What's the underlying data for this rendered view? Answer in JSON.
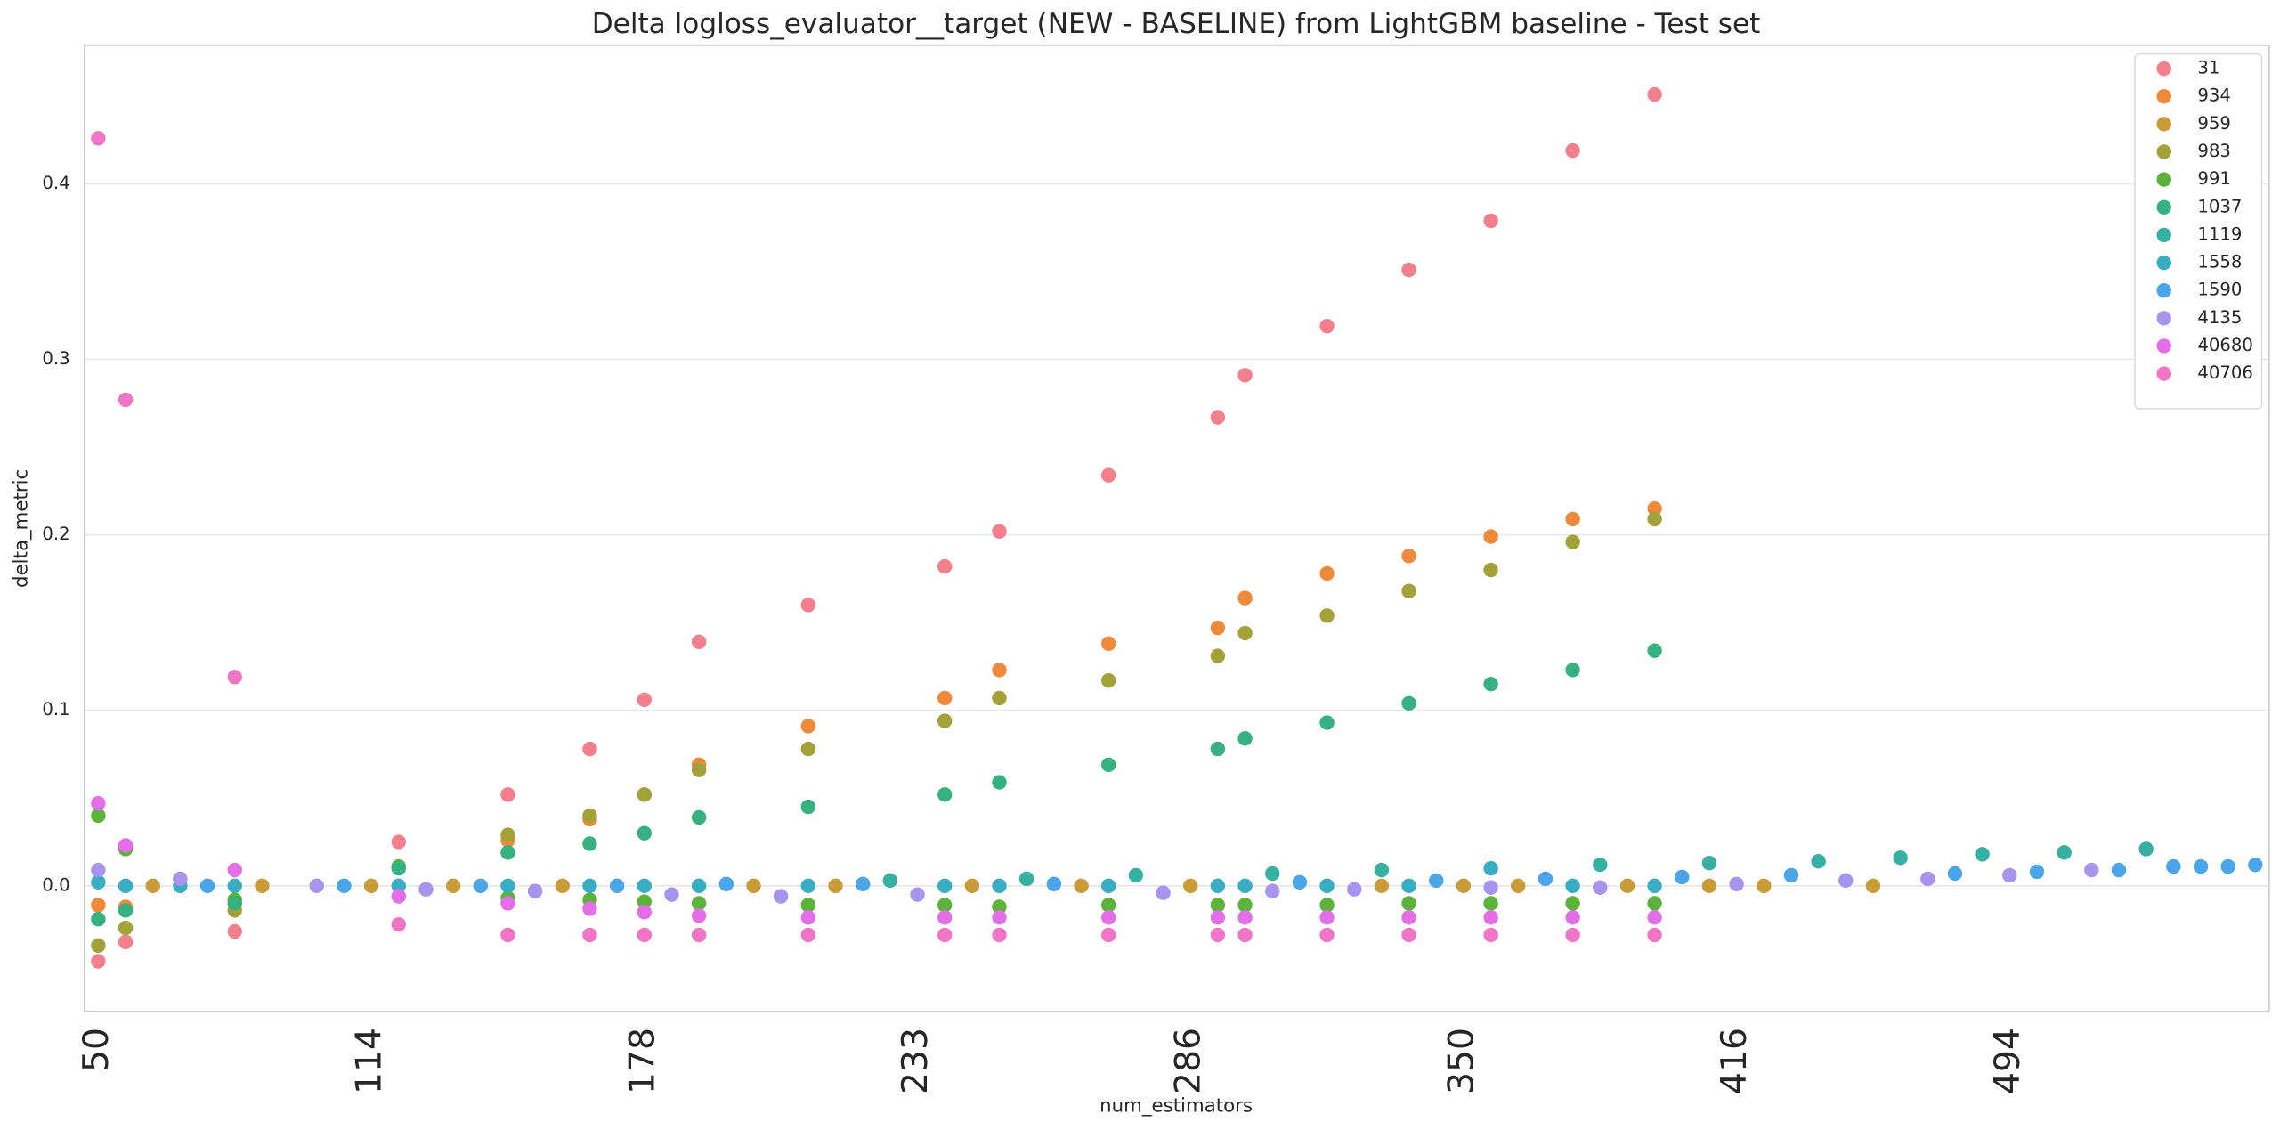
{
  "chart_data": {
    "type": "scatter",
    "title": "Delta logloss_evaluator__target (NEW - BASELINE) from LightGBM baseline - Test set",
    "xlabel": "num_estimators",
    "ylabel": "delta_metric",
    "categories": [
      "50",
      null,
      null,
      null,
      null,
      null,
      null,
      null,
      null,
      null,
      "114",
      null,
      null,
      null,
      null,
      null,
      null,
      null,
      null,
      null,
      "178",
      null,
      null,
      null,
      null,
      null,
      null,
      null,
      null,
      null,
      "233",
      null,
      null,
      null,
      null,
      null,
      null,
      null,
      null,
      null,
      "286",
      null,
      null,
      null,
      null,
      null,
      null,
      null,
      null,
      null,
      "350",
      null,
      null,
      null,
      null,
      null,
      null,
      null,
      null,
      null,
      "416",
      null,
      null,
      null,
      null,
      null,
      null,
      null,
      null,
      null,
      "494",
      null,
      null,
      null,
      null,
      null,
      null,
      null,
      null,
      null
    ],
    "ylim": [
      -0.0716,
      0.479
    ],
    "yticks": [
      {
        "value": 0,
        "label": "0.0"
      },
      0.1,
      0.2,
      0.3,
      0.4
    ],
    "grid": true,
    "legend": "upper right",
    "series": [
      {
        "name": "31",
        "color": "#f47f8c",
        "values": [
          -0.043,
          -0.032,
          null,
          null,
          null,
          -0.026,
          null,
          null,
          null,
          null,
          null,
          0.025,
          null,
          null,
          null,
          0.052,
          null,
          null,
          0.078,
          null,
          0.106,
          null,
          0.139,
          null,
          null,
          null,
          0.16,
          null,
          null,
          null,
          null,
          0.182,
          null,
          0.202,
          null,
          null,
          null,
          0.234,
          null,
          null,
          null,
          0.267,
          0.291,
          null,
          null,
          0.319,
          null,
          null,
          0.351,
          null,
          null,
          0.379,
          null,
          null,
          0.419,
          null,
          null,
          0.451,
          null,
          null,
          null,
          null,
          null,
          null,
          null,
          null,
          null,
          null,
          null,
          null,
          null,
          null,
          null,
          null,
          null,
          null,
          null,
          null,
          null,
          null
        ]
      },
      {
        "name": "934",
        "color": "#ef8a3a",
        "values": [
          -0.011,
          -0.012,
          null,
          null,
          null,
          null,
          null,
          null,
          null,
          null,
          null,
          null,
          null,
          null,
          null,
          0.026,
          null,
          null,
          0.038,
          null,
          0.052,
          null,
          0.069,
          null,
          null,
          null,
          0.091,
          null,
          null,
          null,
          null,
          0.107,
          null,
          0.123,
          null,
          null,
          null,
          0.138,
          null,
          null,
          null,
          0.147,
          0.164,
          null,
          null,
          0.178,
          null,
          null,
          0.188,
          null,
          null,
          0.199,
          null,
          null,
          0.209,
          null,
          null,
          0.215,
          null,
          null,
          null,
          null,
          null,
          null,
          null,
          null,
          null,
          null,
          null,
          null,
          null,
          null,
          null,
          null,
          null,
          null,
          null,
          null,
          null,
          null
        ]
      },
      {
        "name": "959",
        "color": "#c99c38",
        "values": [
          null,
          null,
          0,
          null,
          null,
          null,
          0,
          null,
          null,
          null,
          0,
          null,
          null,
          0,
          null,
          null,
          null,
          0,
          null,
          null,
          null,
          null,
          null,
          null,
          0,
          null,
          null,
          0,
          null,
          null,
          null,
          null,
          0,
          null,
          null,
          null,
          0,
          null,
          null,
          null,
          0,
          null,
          null,
          null,
          null,
          null,
          null,
          0,
          null,
          null,
          0,
          null,
          0,
          null,
          null,
          null,
          0,
          null,
          null,
          0,
          null,
          0,
          null,
          null,
          null,
          0,
          null,
          null,
          null,
          null,
          null,
          null,
          null,
          null,
          null,
          null,
          null,
          null,
          null,
          null
        ]
      },
      {
        "name": "983",
        "color": "#a3a239",
        "values": [
          -0.034,
          -0.024,
          null,
          null,
          null,
          -0.014,
          null,
          null,
          null,
          null,
          null,
          null,
          null,
          null,
          null,
          0.029,
          null,
          null,
          0.04,
          null,
          0.052,
          null,
          0.066,
          null,
          null,
          null,
          0.078,
          null,
          null,
          null,
          null,
          0.094,
          null,
          0.107,
          null,
          null,
          null,
          0.117,
          null,
          null,
          null,
          0.131,
          0.144,
          null,
          null,
          0.154,
          null,
          null,
          0.168,
          null,
          null,
          0.18,
          null,
          null,
          0.196,
          null,
          null,
          0.209,
          null,
          null,
          null,
          null,
          null,
          null,
          null,
          null,
          null,
          null,
          null,
          null,
          null,
          null,
          null,
          null,
          null,
          null,
          null,
          null,
          null,
          null
        ]
      },
      {
        "name": "991",
        "color": "#5bb33a",
        "values": [
          0.04,
          0.021,
          null,
          null,
          null,
          -0.008,
          null,
          null,
          null,
          null,
          null,
          0.011,
          null,
          null,
          null,
          -0.007,
          null,
          null,
          -0.008,
          null,
          -0.009,
          null,
          -0.01,
          null,
          null,
          null,
          -0.011,
          null,
          null,
          null,
          null,
          -0.011,
          null,
          -0.012,
          null,
          null,
          null,
          -0.011,
          null,
          null,
          null,
          -0.011,
          -0.011,
          null,
          null,
          -0.011,
          null,
          null,
          -0.01,
          null,
          null,
          -0.01,
          null,
          null,
          -0.01,
          null,
          null,
          -0.01,
          null,
          null,
          null,
          null,
          null,
          null,
          null,
          null,
          null,
          null,
          null,
          null,
          null,
          null,
          null,
          null,
          null,
          null,
          null,
          null,
          null,
          null
        ]
      },
      {
        "name": "1037",
        "color": "#35b27f",
        "values": [
          -0.019,
          -0.014,
          null,
          null,
          null,
          -0.01,
          null,
          null,
          null,
          null,
          null,
          0.01,
          null,
          null,
          null,
          0.019,
          null,
          null,
          0.024,
          null,
          0.03,
          null,
          0.039,
          null,
          null,
          null,
          0.045,
          null,
          null,
          null,
          null,
          0.052,
          null,
          0.059,
          null,
          null,
          null,
          0.069,
          null,
          null,
          null,
          0.078,
          0.084,
          null,
          null,
          0.093,
          null,
          null,
          0.104,
          null,
          null,
          0.115,
          null,
          null,
          0.123,
          null,
          null,
          0.134,
          null,
          null,
          null,
          null,
          null,
          null,
          null,
          null,
          null,
          null,
          null,
          null,
          null,
          null,
          null,
          null,
          null,
          null,
          null,
          null,
          null,
          null
        ]
      },
      {
        "name": "1119",
        "color": "#36b0a3",
        "values": [
          null,
          null,
          null,
          null,
          null,
          null,
          null,
          null,
          null,
          null,
          null,
          null,
          null,
          null,
          null,
          null,
          null,
          null,
          null,
          null,
          null,
          null,
          null,
          null,
          null,
          null,
          null,
          null,
          null,
          0.003,
          null,
          null,
          null,
          null,
          0.004,
          null,
          null,
          null,
          0.006,
          null,
          null,
          null,
          null,
          0.007,
          null,
          null,
          null,
          0.009,
          null,
          null,
          null,
          null,
          null,
          null,
          null,
          0.012,
          null,
          null,
          null,
          0.013,
          null,
          null,
          null,
          0.014,
          null,
          null,
          0.016,
          null,
          null,
          0.018,
          null,
          null,
          0.019,
          null,
          null,
          0.021,
          null,
          null,
          null,
          null
        ]
      },
      {
        "name": "1558",
        "color": "#38adc4",
        "values": [
          0.002,
          0,
          null,
          0,
          null,
          0,
          null,
          null,
          null,
          null,
          null,
          0,
          null,
          null,
          null,
          0,
          null,
          null,
          0,
          null,
          0,
          null,
          0,
          null,
          null,
          null,
          0,
          null,
          null,
          null,
          null,
          0,
          null,
          0,
          null,
          null,
          null,
          0,
          null,
          null,
          null,
          0,
          0,
          null,
          null,
          0,
          null,
          null,
          0,
          null,
          null,
          0.01,
          null,
          null,
          0,
          null,
          null,
          0,
          null,
          null,
          null,
          null,
          null,
          null,
          null,
          null,
          null,
          null,
          null,
          null,
          null,
          null,
          null,
          null,
          null,
          null,
          null,
          null,
          null,
          null
        ]
      },
      {
        "name": "1590",
        "color": "#4aa6e8",
        "values": [
          null,
          null,
          null,
          null,
          0,
          null,
          null,
          null,
          null,
          0,
          null,
          null,
          null,
          null,
          0,
          null,
          null,
          null,
          null,
          0,
          null,
          null,
          null,
          0.001,
          null,
          null,
          null,
          null,
          0.001,
          null,
          null,
          null,
          null,
          null,
          null,
          0.001,
          null,
          null,
          null,
          null,
          null,
          null,
          null,
          null,
          0.002,
          null,
          null,
          null,
          null,
          0.003,
          null,
          null,
          null,
          0.004,
          null,
          null,
          null,
          null,
          0.005,
          null,
          null,
          null,
          0.006,
          null,
          null,
          null,
          null,
          null,
          0.007,
          null,
          null,
          0.008,
          null,
          null,
          0.009,
          null,
          0.011,
          0.011,
          0.011,
          0.012
        ]
      },
      {
        "name": "4135",
        "color": "#a893ee",
        "values": [
          0.009,
          null,
          null,
          0.004,
          null,
          null,
          null,
          null,
          0,
          null,
          null,
          null,
          -0.002,
          null,
          null,
          null,
          -0.003,
          null,
          null,
          null,
          null,
          -0.005,
          null,
          null,
          null,
          -0.006,
          null,
          null,
          null,
          null,
          -0.005,
          null,
          null,
          null,
          null,
          null,
          null,
          null,
          null,
          -0.004,
          null,
          null,
          null,
          -0.003,
          null,
          null,
          -0.002,
          null,
          null,
          null,
          null,
          -0.001,
          null,
          null,
          null,
          -0.001,
          null,
          null,
          null,
          null,
          0.001,
          null,
          null,
          null,
          0.003,
          null,
          null,
          0.004,
          null,
          null,
          0.006,
          null,
          null,
          0.009,
          null,
          null,
          null,
          null,
          null,
          null
        ]
      },
      {
        "name": "40680",
        "color": "#e36ee8",
        "values": [
          0.047,
          0.023,
          null,
          null,
          null,
          0.009,
          null,
          null,
          null,
          null,
          null,
          -0.006,
          null,
          null,
          null,
          -0.01,
          null,
          null,
          -0.013,
          null,
          -0.015,
          null,
          -0.017,
          null,
          null,
          null,
          -0.018,
          null,
          null,
          null,
          null,
          -0.018,
          null,
          -0.018,
          null,
          null,
          null,
          -0.018,
          null,
          null,
          null,
          -0.018,
          -0.018,
          null,
          null,
          -0.018,
          null,
          null,
          -0.018,
          null,
          null,
          -0.018,
          null,
          null,
          -0.018,
          null,
          null,
          -0.018,
          null,
          null,
          null,
          null,
          null,
          null,
          null,
          null,
          null,
          null,
          null,
          null,
          null,
          null,
          null,
          null,
          null,
          null,
          null,
          null,
          null,
          null
        ]
      },
      {
        "name": "40706",
        "color": "#f075c6",
        "values": [
          0.426,
          0.277,
          null,
          null,
          null,
          0.119,
          null,
          null,
          null,
          null,
          null,
          -0.022,
          null,
          null,
          null,
          -0.028,
          null,
          null,
          -0.028,
          null,
          -0.028,
          null,
          -0.028,
          null,
          null,
          null,
          -0.028,
          null,
          null,
          null,
          null,
          -0.028,
          null,
          -0.028,
          null,
          null,
          null,
          -0.028,
          null,
          null,
          null,
          -0.028,
          -0.028,
          null,
          null,
          -0.028,
          null,
          null,
          -0.028,
          null,
          null,
          -0.028,
          null,
          null,
          -0.028,
          null,
          null,
          -0.028,
          null,
          null,
          null,
          null,
          null,
          null,
          null,
          null,
          null,
          null,
          null,
          null,
          null,
          null,
          null,
          null,
          null,
          null,
          null,
          null,
          null,
          null
        ]
      }
    ]
  }
}
